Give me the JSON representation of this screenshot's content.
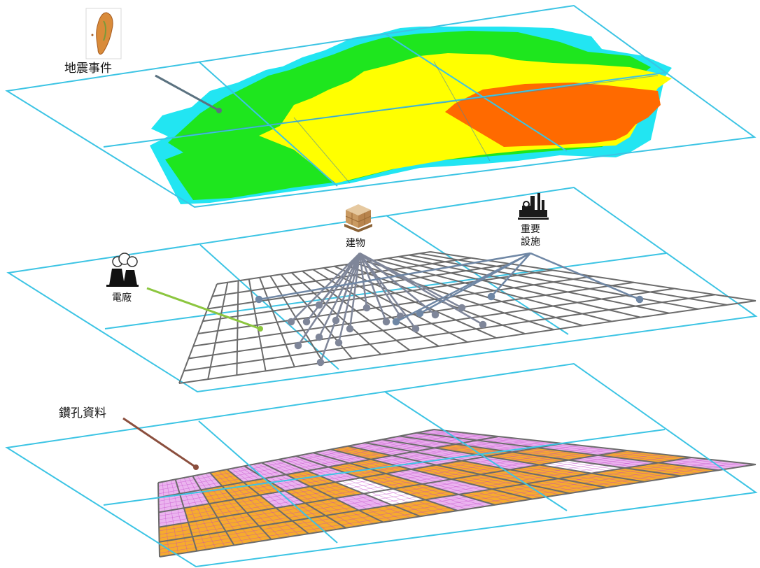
{
  "layers": {
    "earthquake": {
      "label": "地震事件",
      "icon": "taiwan-map-icon",
      "zone_colors": {
        "outer": "#22e5f2",
        "strong": "#1ee61e",
        "stronger": "#ffff00",
        "strongest": "#ff6a00"
      }
    },
    "infrastructure": {
      "buildings_label": "建物",
      "buildings_icon": "pallet-boxes-icon",
      "facilities_label_line1": "重要",
      "facilities_label_line2": "設施",
      "facilities_icon": "factory-icon",
      "powerplant_label": "電廠",
      "powerplant_icon": "cooling-tower-icon"
    },
    "borehole": {
      "label": "鑽孔資料",
      "cell_colors": {
        "dense": "#f6a623",
        "sparse": "#e49bea"
      }
    }
  },
  "colors": {
    "plane_border": "#3cc4e4",
    "grid_line": "#6b6b6b",
    "buildings_line": "#7f8699",
    "facilities_line": "#6f87a5",
    "powerplant_line": "#8cc63f",
    "earthquake_line": "#5b7280",
    "borehole_line": "#8b4f3e"
  }
}
